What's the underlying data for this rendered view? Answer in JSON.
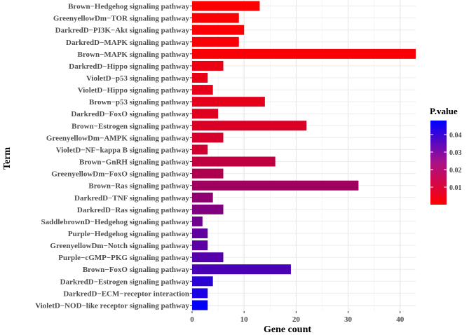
{
  "chart_data": {
    "type": "bar",
    "orientation": "horizontal",
    "xlabel": "Gene count",
    "ylabel": "Term",
    "xlim": [
      0,
      43
    ],
    "xticks": [
      0,
      10,
      20,
      30,
      40
    ],
    "grid": true,
    "legend": {
      "title": "P.value",
      "placement": "right",
      "range": [
        0,
        0.048
      ],
      "ticks": [
        0.01,
        0.02,
        0.03,
        0.04
      ],
      "colors": [
        "#ff0000",
        "#0000ff"
      ]
    },
    "categories": [
      "Brown−Hedgehog signaling pathway",
      "GreenyellowDm−TOR signaling pathway",
      "DarkredD−PI3K−Akt signaling pathway",
      "DarkredD−MAPK signaling pathway",
      "Brown−MAPK signaling pathway",
      "DarkredD−Hippo signaling pathway",
      "VioletD−p53 signaling pathway",
      "VioletD−Hippo signaling pathway",
      "Brown−p53 signaling pathway",
      "DarkredD−FoxO signaling pathway",
      "Brown−Estrogen signaling pathway",
      "GreenyellowDm−AMPK signaling pathway",
      "VioletD−NF−kappa B signaling pathway",
      "Brown−GnRH signaling pathway",
      "GreenyellowDm−FoxO signaling pathway",
      "Brown−Ras signaling pathway",
      "DarkredD−TNF signaling pathway",
      "DarkredD−Ras signaling pathway",
      "SaddlebrownD−Hedgehog signaling pathway",
      "Purple−Hedgehog signaling pathway",
      "GreenyellowDm−Notch signaling pathway",
      "Purple−cGMP−PKG signaling pathway",
      "Brown−FoxO signaling pathway",
      "DarkredD−Estrogen signaling pathway",
      "DarkredD−ECM−receptor interaction",
      "VioletD−NOD−like receptor signaling pathway"
    ],
    "values": [
      13,
      9,
      10,
      9,
      43,
      6,
      3,
      4,
      14,
      5,
      22,
      6,
      3,
      16,
      6,
      32,
      4,
      6,
      2,
      3,
      3,
      6,
      19,
      4,
      3,
      3
    ],
    "pvalues": [
      0.0003,
      0.0005,
      0.0008,
      0.0012,
      0.0012,
      0.0035,
      0.004,
      0.0045,
      0.005,
      0.006,
      0.007,
      0.008,
      0.009,
      0.012,
      0.015,
      0.018,
      0.021,
      0.024,
      0.027,
      0.03,
      0.031,
      0.032,
      0.034,
      0.04,
      0.043,
      0.047
    ]
  }
}
